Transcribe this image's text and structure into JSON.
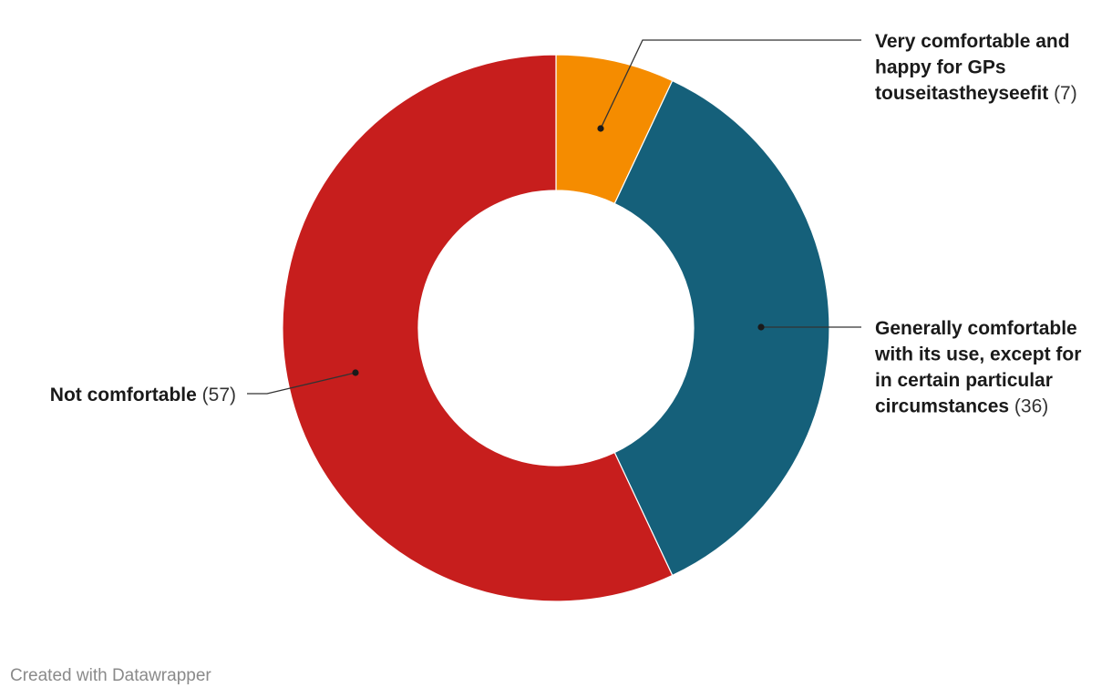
{
  "chart_data": {
    "type": "pie",
    "style": "donut",
    "categories": [
      "Very comfortable and happy for GPs touseitastheyseefit",
      "Generally comfortable with its use, except for in certain particular circumstances",
      "Not comfortable"
    ],
    "values": [
      7,
      36,
      57
    ],
    "value_labels": [
      "(7)",
      "(36)",
      "(57)"
    ],
    "colors": [
      "#f58c00",
      "#15607a",
      "#c71e1d"
    ],
    "label_lines": [
      [
        "Very comfortable and",
        "happy for GPs",
        "touseitastheyseefit"
      ],
      [
        "Generally comfortable",
        "with its use, except for",
        "in certain particular",
        "circumstances"
      ],
      [
        "Not comfortable"
      ]
    ],
    "legend": "none"
  },
  "footer": {
    "credit": "Created with Datawrapper"
  }
}
